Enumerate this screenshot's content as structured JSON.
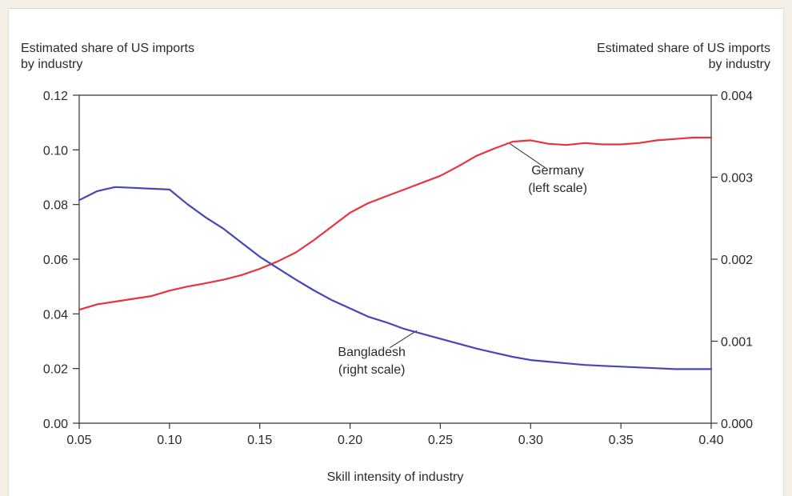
{
  "chart_data": {
    "type": "line",
    "title": "",
    "left_axis_title": [
      "Estimated share of US imports",
      "by industry"
    ],
    "right_axis_title": [
      "Estimated share of US imports",
      "by industry"
    ],
    "xlabel": "Skill intensity of industry",
    "xlim": [
      0.05,
      0.4
    ],
    "x_ticks": [
      0.05,
      0.1,
      0.15,
      0.2,
      0.25,
      0.3,
      0.35,
      0.4
    ],
    "x_tick_labels": [
      "0.05",
      "0.10",
      "0.15",
      "0.20",
      "0.25",
      "0.30",
      "0.35",
      "0.40"
    ],
    "left_ylim": [
      0,
      0.12
    ],
    "left_ticks": [
      0.0,
      0.02,
      0.04,
      0.06,
      0.08,
      0.1,
      0.12
    ],
    "left_tick_labels": [
      "0.00",
      "0.02",
      "0.04",
      "0.06",
      "0.08",
      "0.10",
      "0.12"
    ],
    "right_ylim": [
      0,
      0.004
    ],
    "right_ticks": [
      0.0,
      0.001,
      0.002,
      0.003,
      0.004
    ],
    "right_tick_labels": [
      "0.000",
      "0.001",
      "0.002",
      "0.003",
      "0.004"
    ],
    "grid": false,
    "series": [
      {
        "name": "Germany",
        "axis": "left",
        "color": "#e8343f",
        "annotation": [
          "Germany",
          "(left scale)"
        ],
        "x": [
          0.05,
          0.06,
          0.07,
          0.08,
          0.09,
          0.1,
          0.11,
          0.12,
          0.13,
          0.14,
          0.15,
          0.16,
          0.17,
          0.18,
          0.19,
          0.2,
          0.21,
          0.22,
          0.23,
          0.24,
          0.25,
          0.26,
          0.27,
          0.28,
          0.29,
          0.3,
          0.31,
          0.32,
          0.33,
          0.34,
          0.35,
          0.36,
          0.37,
          0.38,
          0.39,
          0.4
        ],
        "values": [
          0.0415,
          0.0435,
          0.0445,
          0.0455,
          0.0465,
          0.0485,
          0.05,
          0.0512,
          0.0525,
          0.0542,
          0.0565,
          0.0592,
          0.0625,
          0.067,
          0.072,
          0.077,
          0.0805,
          0.083,
          0.0855,
          0.088,
          0.0905,
          0.094,
          0.0978,
          0.1005,
          0.103,
          0.1035,
          0.1022,
          0.1018,
          0.1025,
          0.102,
          0.102,
          0.1025,
          0.1035,
          0.104,
          0.1045,
          0.1045
        ]
      },
      {
        "name": "Bangladesh",
        "axis": "right",
        "color": "#4646bc",
        "annotation": [
          "Bangladesh",
          "(right scale)"
        ],
        "x": [
          0.05,
          0.06,
          0.07,
          0.08,
          0.09,
          0.1,
          0.11,
          0.12,
          0.13,
          0.14,
          0.15,
          0.16,
          0.17,
          0.18,
          0.19,
          0.2,
          0.21,
          0.22,
          0.23,
          0.24,
          0.25,
          0.26,
          0.27,
          0.28,
          0.29,
          0.3,
          0.31,
          0.32,
          0.33,
          0.34,
          0.35,
          0.36,
          0.37,
          0.38,
          0.39,
          0.4
        ],
        "values": [
          0.00272,
          0.00283,
          0.00288,
          0.00287,
          0.00286,
          0.00285,
          0.00267,
          0.00251,
          0.00237,
          0.0022,
          0.00203,
          0.00189,
          0.00175,
          0.00162,
          0.0015,
          0.0014,
          0.0013,
          0.00123,
          0.00115,
          0.00109,
          0.00103,
          0.00097,
          0.00091,
          0.00086,
          0.00081,
          0.00077,
          0.00075,
          0.00073,
          0.00071,
          0.0007,
          0.00069,
          0.00068,
          0.00067,
          0.00066,
          0.00066,
          0.00066
        ]
      }
    ]
  }
}
